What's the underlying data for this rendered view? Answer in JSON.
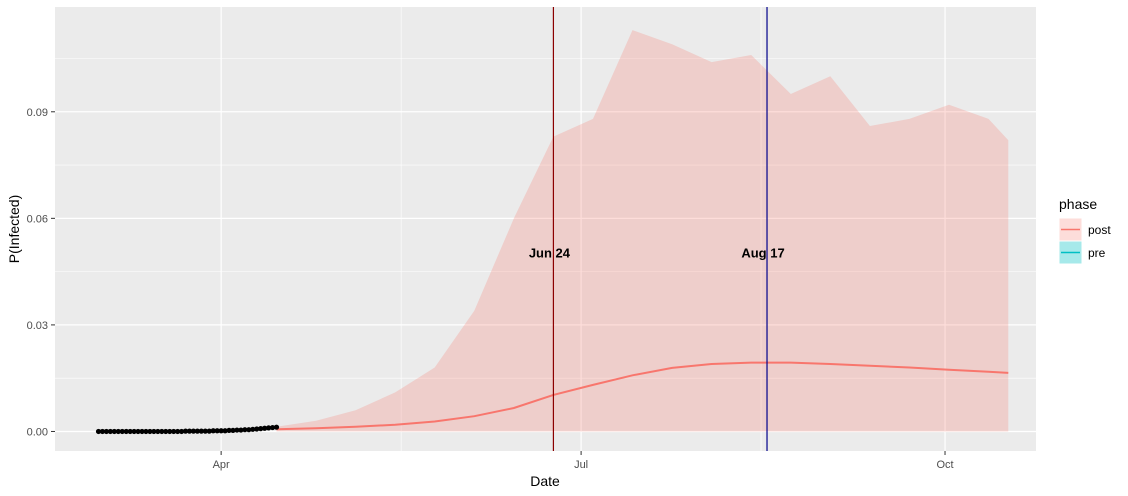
{
  "chart_data": {
    "type": "area",
    "xlabel": "Date",
    "ylabel": "P(Infected)",
    "x_ticks": [
      "Apr",
      "Jul",
      "Oct"
    ],
    "y_ticks": [
      "0.00",
      "0.03",
      "0.06",
      "0.09"
    ],
    "ylim": [
      -0.0055,
      0.1195
    ],
    "xlim": [
      "2020-02-19",
      "2020-10-24"
    ],
    "grid": true,
    "legend": {
      "title": "phase",
      "position": "right",
      "entries": [
        {
          "label": "post",
          "color": "#f8766d"
        },
        {
          "label": "pre",
          "color": "#00bfc4"
        }
      ]
    },
    "pre_points": {
      "phase": "pre",
      "dates": [
        "2020-03-01",
        "2020-03-02",
        "2020-03-03",
        "2020-03-04",
        "2020-03-05",
        "2020-03-06",
        "2020-03-07",
        "2020-03-08",
        "2020-03-09",
        "2020-03-10",
        "2020-03-11",
        "2020-03-12",
        "2020-03-13",
        "2020-03-14",
        "2020-03-15",
        "2020-03-16",
        "2020-03-17",
        "2020-03-18",
        "2020-03-19",
        "2020-03-20",
        "2020-03-21",
        "2020-03-22",
        "2020-03-23",
        "2020-03-24",
        "2020-03-25",
        "2020-03-26",
        "2020-03-27",
        "2020-03-28",
        "2020-03-29",
        "2020-03-30",
        "2020-03-31",
        "2020-04-01",
        "2020-04-02",
        "2020-04-03",
        "2020-04-04",
        "2020-04-05",
        "2020-04-06",
        "2020-04-07",
        "2020-04-08",
        "2020-04-09",
        "2020-04-10",
        "2020-04-11",
        "2020-04-12",
        "2020-04-13",
        "2020-04-14",
        "2020-04-15"
      ],
      "values": [
        0.0,
        0.0,
        0.0,
        0.0,
        0.0,
        0.0,
        0.0,
        0.0,
        0.0,
        0.0,
        0.0,
        0.0,
        0.0,
        0.0,
        0.0,
        0.0,
        0.0,
        0.0,
        0.0,
        0.0,
        0.0,
        0.0,
        0.0001,
        0.0001,
        0.0001,
        0.0001,
        0.0001,
        0.0001,
        0.0001,
        0.0002,
        0.0002,
        0.0002,
        0.0002,
        0.0003,
        0.0003,
        0.0004,
        0.0004,
        0.0005,
        0.0005,
        0.0006,
        0.0007,
        0.0008,
        0.0009,
        0.001,
        0.0011,
        0.0012
      ]
    },
    "post_series": {
      "phase": "post",
      "dates": [
        "2020-04-15",
        "2020-04-25",
        "2020-05-05",
        "2020-05-15",
        "2020-05-25",
        "2020-06-04",
        "2020-06-14",
        "2020-06-24",
        "2020-07-04",
        "2020-07-14",
        "2020-07-24",
        "2020-08-03",
        "2020-08-13",
        "2020-08-23",
        "2020-09-02",
        "2020-09-12",
        "2020-09-22",
        "2020-10-02",
        "2020-10-12",
        "2020-10-17"
      ],
      "mean": [
        0.0006,
        0.0009,
        0.0013,
        0.0019,
        0.0028,
        0.0043,
        0.0066,
        0.0103,
        0.0131,
        0.0158,
        0.0179,
        0.019,
        0.0194,
        0.0194,
        0.019,
        0.0185,
        0.018,
        0.0174,
        0.0168,
        0.0165
      ],
      "lower": [
        0.0,
        0.0,
        0.0,
        0.0,
        0.0,
        0.0,
        0.0,
        0.0,
        0.0,
        0.0,
        0.0,
        0.0,
        0.0,
        0.0,
        0.0,
        0.0,
        0.0,
        0.0,
        0.0,
        0.0
      ],
      "upper": [
        0.0013,
        0.003,
        0.006,
        0.011,
        0.018,
        0.034,
        0.06,
        0.083,
        0.088,
        0.113,
        0.109,
        0.104,
        0.106,
        0.095,
        0.1,
        0.086,
        0.088,
        0.092,
        0.088,
        0.082
      ]
    },
    "vlines": [
      {
        "date": "2020-06-24",
        "label": "Jun 24",
        "color": "#8b0000"
      },
      {
        "date": "2020-08-17",
        "label": "Aug 17",
        "color": "#00008b"
      }
    ]
  }
}
